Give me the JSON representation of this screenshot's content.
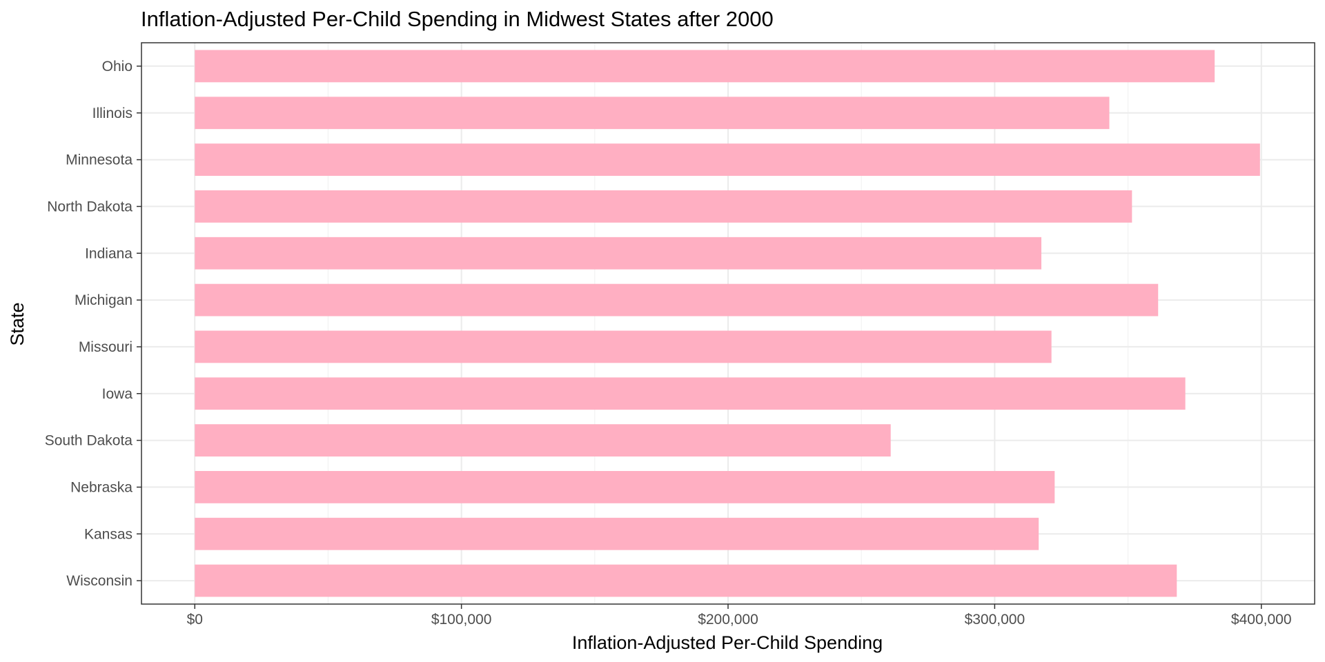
{
  "chart_data": {
    "type": "bar",
    "orientation": "horizontal",
    "title": "Inflation-Adjusted Per-Child Spending in Midwest States after 2000",
    "xlabel": "Inflation-Adjusted Per-Child Spending",
    "ylabel": "State",
    "categories": [
      "Ohio",
      "Illinois",
      "Minnesota",
      "North Dakota",
      "Indiana",
      "Michigan",
      "Missouri",
      "Iowa",
      "South Dakota",
      "Nebraska",
      "Kansas",
      "Wisconsin"
    ],
    "values": [
      382500,
      343000,
      399500,
      351500,
      317500,
      361300,
      321300,
      371500,
      261000,
      322500,
      316500,
      368300
    ],
    "xlim": [
      -20000,
      420000
    ],
    "xticks": [
      0,
      100000,
      200000,
      300000,
      400000
    ],
    "xtick_labels": [
      "$0",
      "$100,000",
      "$200,000",
      "$300,000",
      "$400,000"
    ],
    "bar_color": "#ffafc2",
    "grid": true,
    "legend": "none"
  }
}
